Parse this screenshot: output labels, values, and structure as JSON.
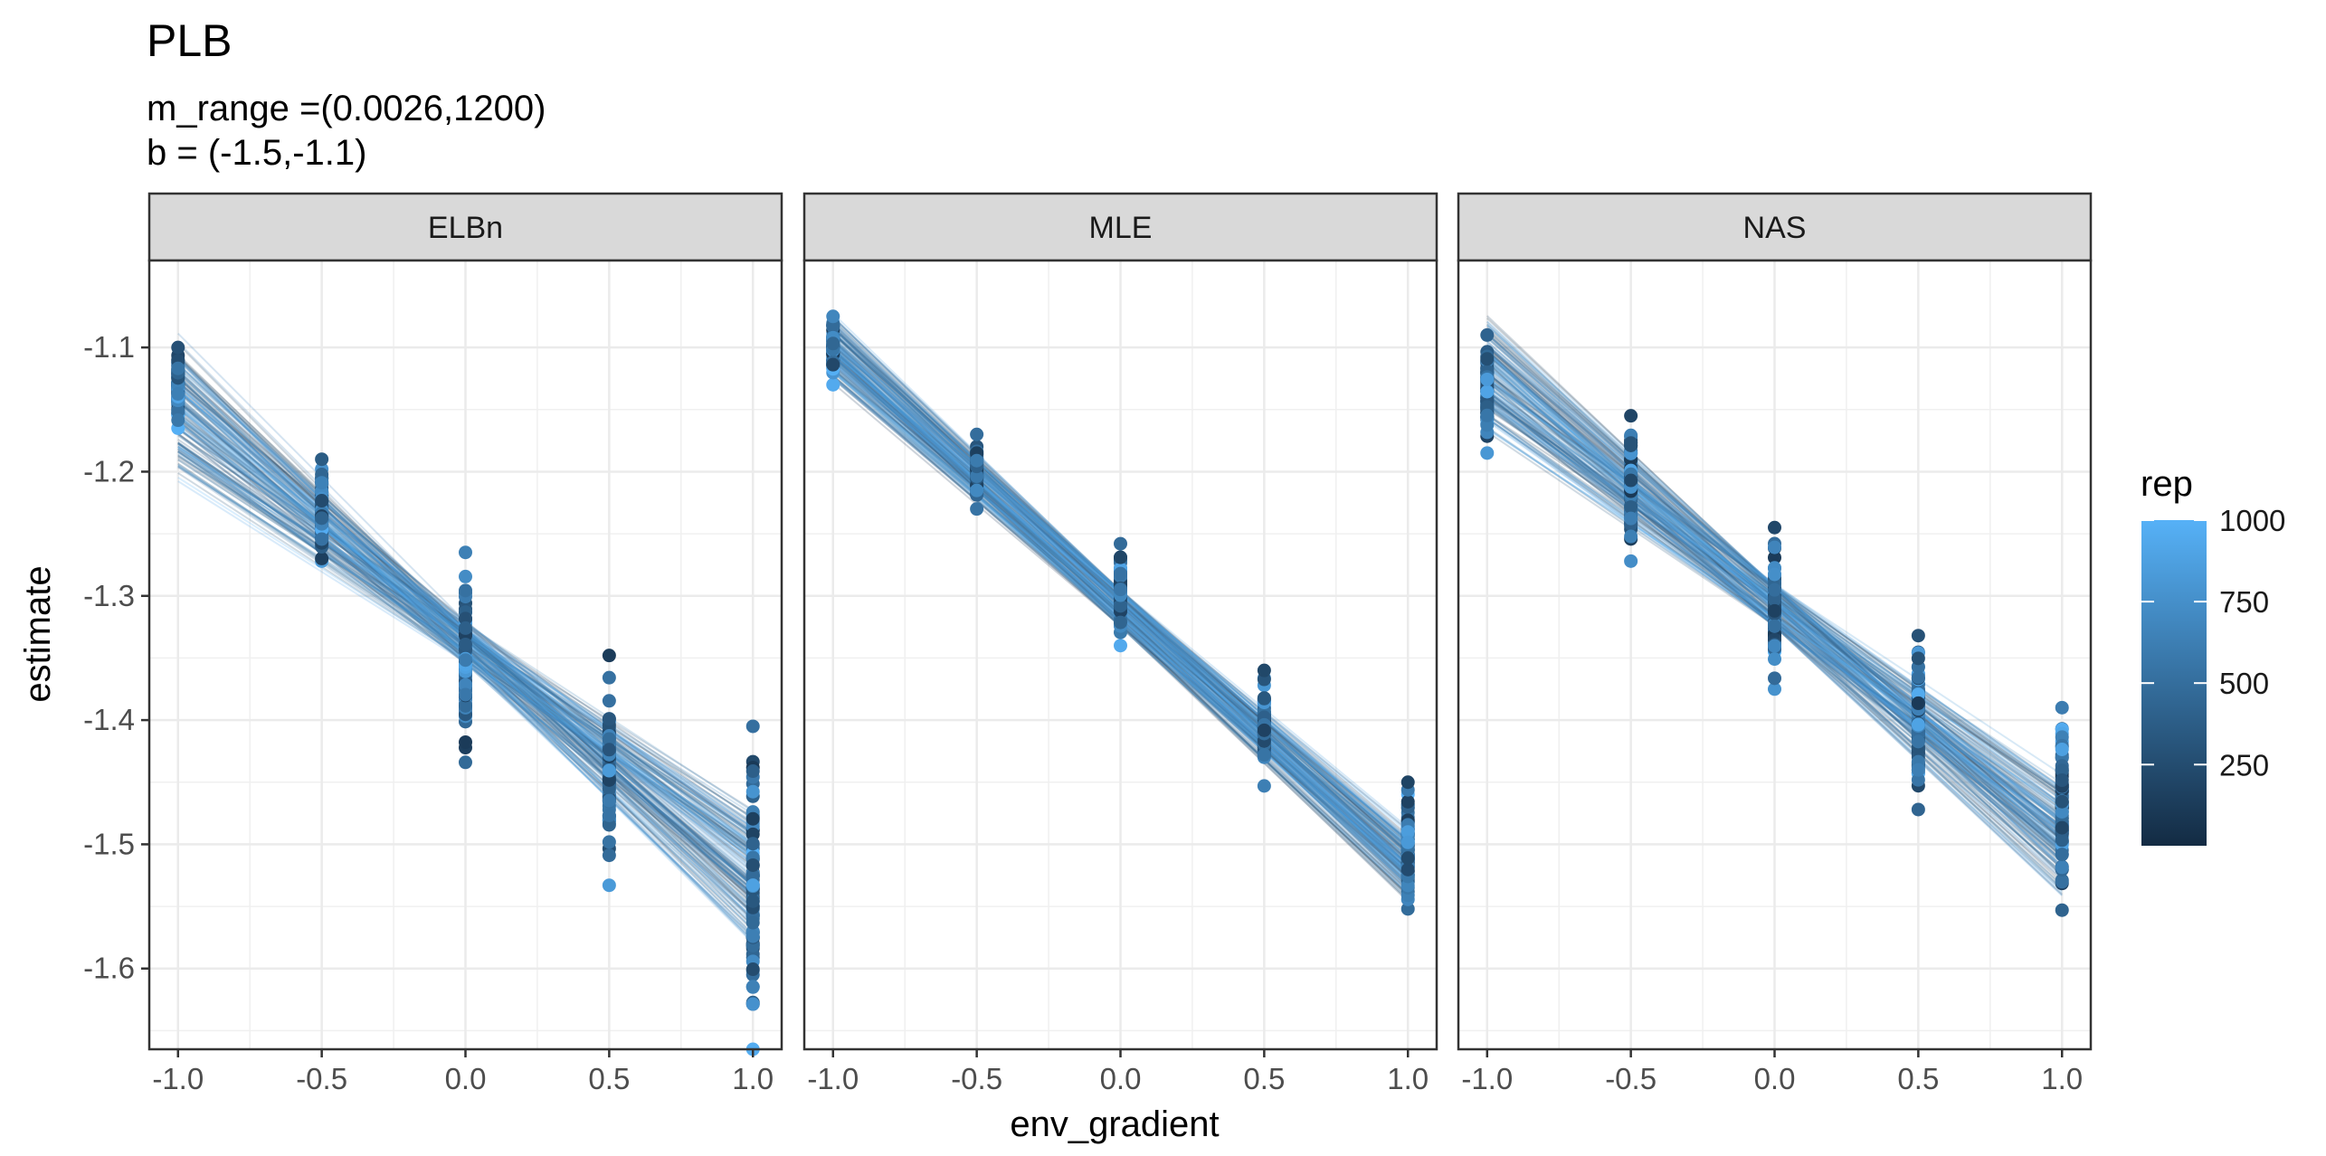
{
  "title": "PLB",
  "subtitle_lines": [
    "m_range =(0.0026,1200)",
    "b = (-1.5,-1.1)"
  ],
  "chart_data": {
    "type": "scatter",
    "facet_labels": [
      "ELBn",
      "MLE",
      "NAS"
    ],
    "xlabel": "env_gradient",
    "ylabel": "estimate",
    "x_ticks": [
      -1.0,
      -0.5,
      0.0,
      0.5,
      1.0
    ],
    "x_tick_labels": [
      "-1.0",
      "-0.5",
      "0.0",
      "0.5",
      "1.0"
    ],
    "y_ticks": [
      -1.1,
      -1.2,
      -1.3,
      -1.4,
      -1.5,
      -1.6
    ],
    "y_tick_labels": [
      "-1.1",
      "-1.2",
      "-1.3",
      "-1.4",
      "-1.5",
      "-1.6"
    ],
    "xlim": [
      -1.1,
      1.1
    ],
    "ylim": [
      -1.665,
      -1.03
    ],
    "grid": true,
    "x_values": [
      -1.0,
      -0.5,
      0.0,
      0.5,
      1.0
    ],
    "panels": [
      {
        "facet": "ELBn",
        "fit_intercept": [
          -1.355,
          -1.32
        ],
        "fit_slope": [
          -0.235,
          -0.145
        ],
        "point_ranges": [
          {
            "x": -1.0,
            "min": -1.165,
            "max": -1.1
          },
          {
            "x": -0.5,
            "min": -1.272,
            "max": -1.19
          },
          {
            "x": 0.0,
            "min": -1.434,
            "max": -1.265
          },
          {
            "x": 0.5,
            "min": -1.533,
            "max": -1.348
          },
          {
            "x": 1.0,
            "min": -1.665,
            "max": -1.405
          }
        ]
      },
      {
        "facet": "MLE",
        "fit_intercept": [
          -1.325,
          -1.295
        ],
        "fit_slope": [
          -0.225,
          -0.19
        ],
        "point_ranges": [
          {
            "x": -1.0,
            "min": -1.13,
            "max": -1.075
          },
          {
            "x": -0.5,
            "min": -1.23,
            "max": -1.17
          },
          {
            "x": 0.0,
            "min": -1.34,
            "max": -1.258
          },
          {
            "x": 0.5,
            "min": -1.453,
            "max": -1.36
          },
          {
            "x": 1.0,
            "min": -1.552,
            "max": -1.45
          }
        ]
      },
      {
        "facet": "NAS",
        "fit_intercept": [
          -1.325,
          -1.29
        ],
        "fit_slope": [
          -0.22,
          -0.15
        ],
        "point_ranges": [
          {
            "x": -1.0,
            "min": -1.185,
            "max": -1.09
          },
          {
            "x": -0.5,
            "min": -1.272,
            "max": -1.155
          },
          {
            "x": 0.0,
            "min": -1.375,
            "max": -1.245
          },
          {
            "x": 0.5,
            "min": -1.472,
            "max": -1.332
          },
          {
            "x": 1.0,
            "min": -1.553,
            "max": -1.39
          }
        ]
      }
    ],
    "legend": {
      "title": "rep",
      "position": "right",
      "breaks": [
        250,
        500,
        750,
        1000
      ],
      "labels": [
        "250",
        "500",
        "750",
        "1000"
      ],
      "range": [
        1,
        1000
      ],
      "low_color": "#132B43",
      "high_color": "#56B1F7"
    }
  }
}
